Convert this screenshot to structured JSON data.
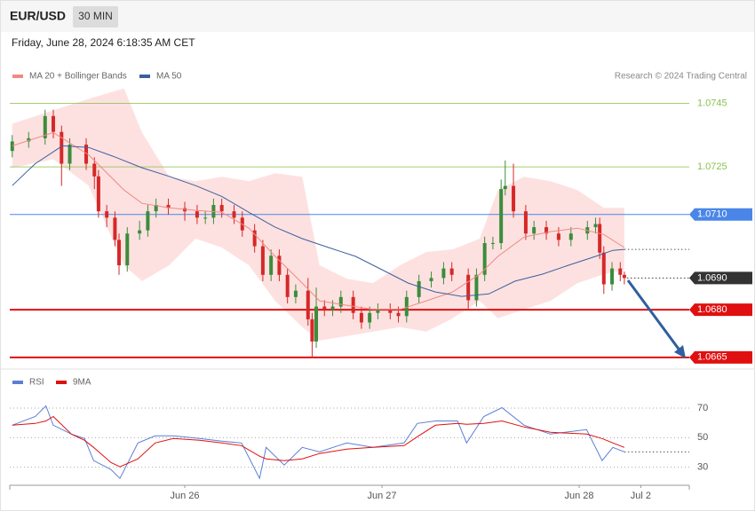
{
  "header": {
    "symbol": "EUR/USD",
    "interval": "30 MIN",
    "timestamp": "Friday, June 28, 2024 6:18:35 AM CET",
    "credit": "Research © 2024 Trading Central"
  },
  "chart_data": [
    {
      "type": "candlestick",
      "up_color": "#3c8c3c",
      "down_color": "#d62828",
      "xlim": [
        -21.3,
        61.4
      ],
      "ylim": [
        1.0663,
        1.0751
      ],
      "x": [
        -21,
        -19,
        -17,
        -16,
        -15,
        -14,
        -12,
        -11,
        -10.5,
        -9.5,
        -8.5,
        -8,
        -7,
        -5.5,
        -4.5,
        -3.5,
        -2,
        0,
        1.5,
        2.5,
        3.5,
        4.5,
        6,
        7,
        8.5,
        9.5,
        10.5,
        11.5,
        12.5,
        13.5,
        15,
        15.5,
        16,
        17,
        18,
        19,
        20.5,
        21.5,
        22.5,
        23.5,
        25,
        26,
        27,
        28.5,
        30,
        31.5,
        32.5,
        34.5,
        35.5,
        36.5,
        37.5,
        38.5,
        39,
        40,
        41.5,
        42.5,
        44,
        45.5,
        47,
        49,
        50,
        50.5,
        51,
        52,
        53,
        53.5
      ],
      "open": [
        1.073,
        1.0733,
        1.0734,
        1.0741,
        1.0736,
        1.0726,
        1.0732,
        1.0726,
        1.0722,
        1.0711,
        1.0709,
        1.0702,
        1.0694,
        1.0704,
        1.0705,
        1.0711,
        1.0713,
        1.0712,
        1.0711,
        1.0709,
        1.0709,
        1.0713,
        1.0711,
        1.0709,
        1.0705,
        1.07,
        1.0691,
        1.0697,
        1.0691,
        1.0684,
        1.0686,
        1.0677,
        1.067,
        1.0681,
        1.068,
        1.0681,
        1.0684,
        1.0679,
        1.0676,
        1.0679,
        1.068,
        1.0679,
        1.0678,
        1.0684,
        1.0689,
        1.069,
        1.0693,
        1.0691,
        1.0683,
        1.0691,
        1.0701,
        1.0701,
        1.0718,
        1.0719,
        1.0711,
        1.0704,
        1.0706,
        1.0704,
        1.0702,
        1.0704,
        1.0706,
        1.0707,
        1.0698,
        1.0688,
        1.0693,
        1.0691
      ],
      "high": [
        1.0735,
        1.0736,
        1.0743,
        1.0743,
        1.0738,
        1.0734,
        1.0734,
        1.0728,
        1.0724,
        1.0713,
        1.0711,
        1.0704,
        1.0706,
        1.0708,
        1.0713,
        1.0715,
        1.0715,
        1.0714,
        1.0713,
        1.0711,
        1.0715,
        1.0715,
        1.0713,
        1.0711,
        1.0707,
        1.0702,
        1.0699,
        1.0699,
        1.0693,
        1.0688,
        1.069,
        1.0679,
        1.0687,
        1.0683,
        1.0683,
        1.0686,
        1.0686,
        1.0681,
        1.0681,
        1.0682,
        1.0682,
        1.0681,
        1.0686,
        1.0691,
        1.0692,
        1.0695,
        1.0695,
        1.0693,
        1.0693,
        1.0703,
        1.0703,
        1.0721,
        1.0727,
        1.0726,
        1.0713,
        1.0708,
        1.0708,
        1.0706,
        1.0706,
        1.0708,
        1.0709,
        1.0709,
        1.07,
        1.0695,
        1.0695,
        1.0692
      ],
      "low": [
        1.0728,
        1.0731,
        1.0732,
        1.0734,
        1.0719,
        1.0724,
        1.0724,
        1.0718,
        1.0709,
        1.0706,
        1.07,
        1.0691,
        1.0692,
        1.0702,
        1.0703,
        1.0709,
        1.071,
        1.0708,
        1.0707,
        1.0707,
        1.0707,
        1.0709,
        1.0707,
        1.0703,
        1.0698,
        1.0689,
        1.0689,
        1.0689,
        1.0682,
        1.0682,
        1.0675,
        1.0665,
        1.0668,
        1.0678,
        1.0678,
        1.0679,
        1.0677,
        1.0674,
        1.0674,
        1.0677,
        1.0677,
        1.0676,
        1.0676,
        1.0682,
        1.0687,
        1.0688,
        1.0689,
        1.068,
        1.0681,
        1.0689,
        1.0699,
        1.0699,
        1.0716,
        1.0709,
        1.0702,
        1.0702,
        1.0702,
        1.07,
        1.07,
        1.0702,
        1.0704,
        1.0696,
        1.0685,
        1.0686,
        1.0689,
        1.0688
      ],
      "close": [
        1.0733,
        1.0734,
        1.0741,
        1.0736,
        1.0726,
        1.0732,
        1.0726,
        1.0722,
        1.0711,
        1.0709,
        1.0702,
        1.0694,
        1.0704,
        1.0705,
        1.0711,
        1.0713,
        1.0712,
        1.0711,
        1.0709,
        1.0709,
        1.0713,
        1.0711,
        1.0709,
        1.0705,
        1.07,
        1.0691,
        1.0697,
        1.0691,
        1.0684,
        1.0686,
        1.0677,
        1.067,
        1.0681,
        1.068,
        1.0681,
        1.0684,
        1.0679,
        1.0676,
        1.0679,
        1.068,
        1.0679,
        1.0678,
        1.0684,
        1.0689,
        1.069,
        1.0693,
        1.0691,
        1.0683,
        1.0691,
        1.0701,
        1.0701,
        1.0718,
        1.0719,
        1.0711,
        1.0704,
        1.0706,
        1.0704,
        1.0702,
        1.0704,
        1.0706,
        1.0707,
        1.0698,
        1.0688,
        1.0693,
        1.0691,
        1.069
      ],
      "series": [
        {
          "name": "MA 20 + Bollinger Bands",
          "color": "#f08a84",
          "band_color": "#fde1e0",
          "x": [
            -21,
            -16,
            -11.7,
            -7.4,
            -5.2,
            -1.9,
            1.3,
            4.5,
            7.8,
            11,
            14.3,
            16.4,
            19.7,
            22.9,
            26.2,
            29.4,
            32.6,
            35.9,
            38.1,
            41.3,
            44.5,
            47.8,
            51,
            53.5
          ],
          "values": [
            1.07316,
            1.07358,
            1.07288,
            1.07177,
            1.07135,
            1.07121,
            1.07113,
            1.07107,
            1.07057,
            1.06968,
            1.06884,
            1.06828,
            1.06814,
            1.06801,
            1.06801,
            1.06828,
            1.06856,
            1.06912,
            1.06968,
            1.07029,
            1.07046,
            1.07057,
            1.07037,
            1.06996
          ],
          "upper": [
            1.07386,
            1.07428,
            1.07464,
            1.07497,
            1.07358,
            1.07219,
            1.07205,
            1.07219,
            1.07205,
            1.0723,
            1.07219,
            1.0694,
            1.06898,
            1.06884,
            1.0694,
            1.06982,
            1.0699,
            1.07024,
            1.07177,
            1.07219,
            1.07205,
            1.07177,
            1.07121,
            1.07121
          ],
          "lower": [
            1.07247,
            1.07274,
            1.07191,
            1.0694,
            1.0689,
            1.0694,
            1.07024,
            1.06996,
            1.0694,
            1.06828,
            1.06745,
            1.06703,
            1.06717,
            1.06731,
            1.06745,
            1.06731,
            1.06773,
            1.06828,
            1.06773,
            1.06801,
            1.06828,
            1.06884,
            1.06912,
            1.06926
          ]
        },
        {
          "name": "MA 50",
          "color": "#3d5f9e",
          "x": [
            -21,
            -18.2,
            -14.9,
            -11.7,
            -8.4,
            -5.2,
            -1.9,
            1.3,
            4.5,
            7.8,
            11,
            14.3,
            17.5,
            20.8,
            24,
            27.2,
            30.5,
            33.7,
            37,
            40.2,
            43.5,
            46.7,
            50,
            52.1,
            53.5
          ],
          "values": [
            1.07191,
            1.0726,
            1.07316,
            1.07311,
            1.0728,
            1.07247,
            1.0722,
            1.07191,
            1.07157,
            1.07107,
            1.0706,
            1.07024,
            1.06996,
            1.06968,
            1.06926,
            1.06884,
            1.06856,
            1.06842,
            1.0685,
            1.0689,
            1.06912,
            1.0694,
            1.06968,
            1.06987,
            1.0699
          ]
        }
      ],
      "levels": [
        {
          "value": 1.0745,
          "label": "1.0745",
          "color": "#8cc152",
          "style": "thin"
        },
        {
          "value": 1.0725,
          "label": "1.0725",
          "color": "#8cc152",
          "style": "thin"
        },
        {
          "value": 1.071,
          "label": "1.0710",
          "color": "#4a86e8",
          "style": "boxed"
        },
        {
          "value": 1.069,
          "label": "1.0690",
          "color": "#333333",
          "style": "dotted"
        },
        {
          "value": 1.068,
          "label": "1.0680",
          "color": "#e01010",
          "style": "thick"
        },
        {
          "value": 1.0665,
          "label": "1.0665",
          "color": "#e01010",
          "style": "thick"
        }
      ]
    },
    {
      "type": "line",
      "xlim": [
        -21.3,
        61.4
      ],
      "ylim": [
        19,
        82
      ],
      "yticks": [
        30,
        50,
        70
      ],
      "xticks": [
        {
          "value": 0,
          "label": "Jun 26"
        },
        {
          "value": 24,
          "label": "Jun 27"
        },
        {
          "value": 48,
          "label": "Jun 28"
        },
        {
          "value": 55.5,
          "label": "Jul 2"
        }
      ],
      "x": [
        -21,
        -18.2,
        -16.9,
        -16,
        -13.8,
        -12.2,
        -11.1,
        -9,
        -7.9,
        -5.7,
        -3.6,
        -1.4,
        1.8,
        4.5,
        6.9,
        9.1,
        9.9,
        12.1,
        14.3,
        16.4,
        19.7,
        22.9,
        26.7,
        28.3,
        30.5,
        33.2,
        34.3,
        36.4,
        38.6,
        41.3,
        44.5,
        48.9,
        50.8,
        52.1,
        53.5
      ],
      "series": [
        {
          "name": "RSI",
          "color": "#5b7fd6",
          "values": [
            58.4,
            64.3,
            71.5,
            58.4,
            52.4,
            49.4,
            34.5,
            28.5,
            22.5,
            46.4,
            51.2,
            51.2,
            49.4,
            47.6,
            46.4,
            22.5,
            43.4,
            31.5,
            43.4,
            40.4,
            46.4,
            43.4,
            46.4,
            59.6,
            61.3,
            61.3,
            46.4,
            64.3,
            70.3,
            58.4,
            52.4,
            55.4,
            34.5,
            43.4,
            40.4
          ]
        },
        {
          "name": "9MA",
          "color": "#e01010",
          "values": [
            58.4,
            59.6,
            61.3,
            64.3,
            52.4,
            48.2,
            43.4,
            33.3,
            30.3,
            35.7,
            46.4,
            49.4,
            48.2,
            46.4,
            44.6,
            37.5,
            35.7,
            34.5,
            35.7,
            39.3,
            42.2,
            43.4,
            44.6,
            50.6,
            58.4,
            59.6,
            59,
            59.6,
            61.3,
            57.2,
            53.6,
            52.4,
            49.4,
            46.4,
            43.4
          ]
        }
      ]
    }
  ]
}
